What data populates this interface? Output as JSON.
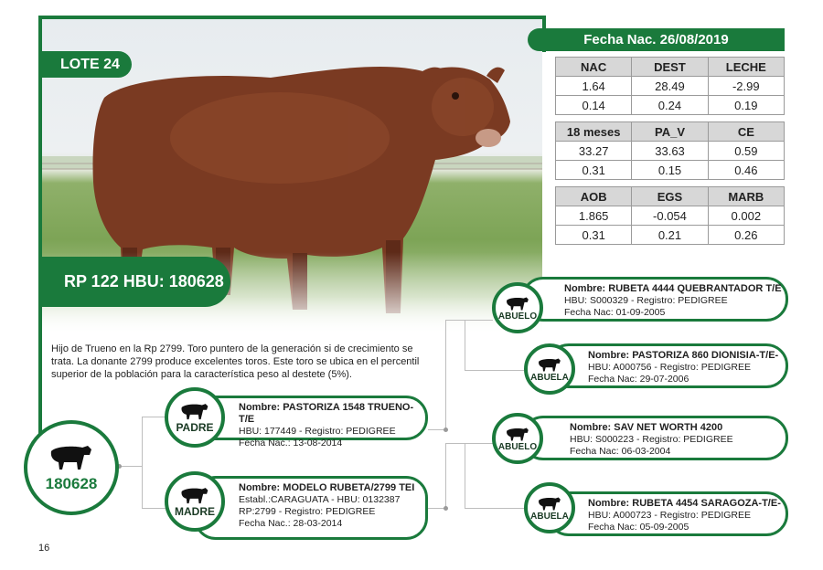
{
  "lote": "LOTE 24",
  "rp_hbu": "RP 122 HBU: 180628",
  "fecha_nac": "Fecha Nac. 26/08/2019",
  "tables": [
    {
      "headers": [
        "NAC",
        "DEST",
        "LECHE"
      ],
      "rows": [
        [
          "1.64",
          "28.49",
          "-2.99"
        ],
        [
          "0.14",
          "0.24",
          "0.19"
        ]
      ]
    },
    {
      "headers": [
        "18 meses",
        "PA_V",
        "CE"
      ],
      "rows": [
        [
          "33.27",
          "33.63",
          "0.59"
        ],
        [
          "0.31",
          "0.15",
          "0.46"
        ]
      ]
    },
    {
      "headers": [
        "AOB",
        "EGS",
        "MARB"
      ],
      "rows": [
        [
          "1.865",
          "-0.054",
          "0.002"
        ],
        [
          "0.31",
          "0.21",
          "0.26"
        ]
      ]
    }
  ],
  "description": "Hijo de Trueno en la Rp 2799. Toro puntero de la generación si de crecimiento se trata. La donante 2799 produce excelentes toros. Este toro se ubica en el percentil superior de la población para la característica peso al destete (5%).",
  "root_id": "180628",
  "page_number": "16",
  "padre": {
    "label": "PADRE",
    "name": "Nombre: PASTORIZA 1548 TRUENO-T/E",
    "l1": "HBU: 177449 - Registro: PEDIGREE",
    "l2": "Fecha Nac.: 13-08-2014"
  },
  "madre": {
    "label": "MADRE",
    "name": "Nombre: MODELO RUBETA/2799 TEI",
    "l1": "Establ.:CARAGUATA - HBU: 0132387",
    "l2": "RP:2799 - Registro: PEDIGREE",
    "l3": "Fecha Nac.: 28-03-2014"
  },
  "abuelo1": {
    "label": "ABUELO",
    "name": "Nombre: RUBETA 4444 QUEBRANTADOR T/E",
    "l1": "HBU: S000329 - Registro: PEDIGREE",
    "l2": "Fecha Nac: 01-09-2005"
  },
  "abuela1": {
    "label": "ABUELA",
    "name": "Nombre: PASTORIZA 860 DIONISIA-T/E-",
    "l1": "HBU: A000756 - Registro: PEDIGREE",
    "l2": "Fecha Nac: 29-07-2006"
  },
  "abuelo2": {
    "label": "ABUELO",
    "name": "Nombre: SAV NET WORTH 4200",
    "l1": "HBU: S000223 - Registro: PEDIGREE",
    "l2": "Fecha Nac: 06-03-2004"
  },
  "abuela2": {
    "label": "ABUELA",
    "name": "Nombre: RUBETA 4454 SARAGOZA-T/E-",
    "l1": "HBU: A000723 - Registro: PEDIGREE",
    "l2": "Fecha Nac: 05-09-2005"
  },
  "icons": {
    "bull": "bull-icon",
    "cow": "cow-icon"
  },
  "colors": {
    "brand_green": "#1a7a3c",
    "table_header": "#d7d7d7"
  }
}
